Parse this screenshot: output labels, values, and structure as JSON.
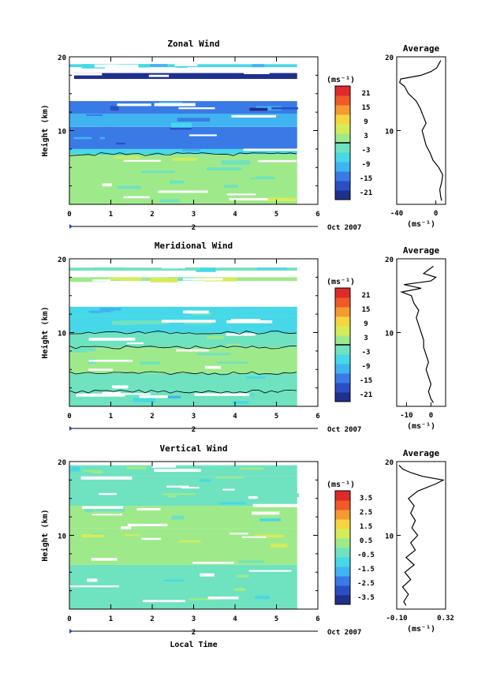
{
  "chart_data": [
    {
      "type": "heatmap",
      "title": "Zonal Wind",
      "ylabel": "Height (km)",
      "xlabel": "",
      "xlim": [
        0,
        6
      ],
      "ylim": [
        0,
        20
      ],
      "xticks": [
        "0",
        "1",
        "2",
        "3",
        "4",
        "5",
        "6"
      ],
      "yticks": [
        "10",
        "20"
      ],
      "date_marker": "2",
      "date_label": "Oct 2007",
      "colorbar": {
        "unit": "(ms⁻¹)",
        "ticks": [
          "21",
          "15",
          "9",
          "3",
          "-3",
          "-9",
          "-15",
          "-21"
        ],
        "range": [
          -24,
          24
        ],
        "zero_line": 0
      },
      "field": {
        "x_end": 5.5,
        "bands": [
          {
            "y0": 0,
            "y1": 6.8,
            "value": 2
          },
          {
            "y0": 6.8,
            "y1": 7.5,
            "value": -8
          },
          {
            "y0": 7.5,
            "y1": 10.5,
            "value": -14
          },
          {
            "y0": 10.5,
            "y1": 12.3,
            "value": -9
          },
          {
            "y0": 12.3,
            "y1": 14,
            "value": -16
          },
          {
            "y0": 18.6,
            "y1": 19.0,
            "value": -5
          }
        ],
        "upper_band": {
          "y0": 17.0,
          "y1": 17.8,
          "value": -21
        }
      },
      "average": {
        "title": "Average",
        "xlabel": "(ms⁻¹)",
        "xlim": [
          -40,
          10
        ],
        "xticks": [
          "-40",
          "0"
        ],
        "yticks": [
          "10",
          "20"
        ],
        "profile": [
          [
            0.5,
            6
          ],
          [
            1,
            5
          ],
          [
            2,
            4
          ],
          [
            3,
            6
          ],
          [
            4,
            7
          ],
          [
            5,
            3
          ],
          [
            6,
            -3
          ],
          [
            7,
            -6
          ],
          [
            8,
            -10
          ],
          [
            9,
            -12
          ],
          [
            10,
            -14
          ],
          [
            11,
            -10
          ],
          [
            12,
            -13
          ],
          [
            13,
            -16
          ],
          [
            14,
            -20
          ],
          [
            15,
            -28
          ],
          [
            16,
            -32
          ],
          [
            16.5,
            -37
          ],
          [
            17,
            -36
          ],
          [
            17.5,
            -15
          ],
          [
            18,
            -5
          ],
          [
            18.5,
            1
          ],
          [
            19,
            3
          ],
          [
            19.5,
            5
          ]
        ]
      }
    },
    {
      "type": "heatmap",
      "title": "Meridional Wind",
      "ylabel": "Height (km)",
      "xlabel": "",
      "xlim": [
        0,
        6
      ],
      "ylim": [
        0,
        20
      ],
      "xticks": [
        "0",
        "1",
        "2",
        "3",
        "4",
        "5",
        "6"
      ],
      "yticks": [
        "10",
        "20"
      ],
      "date_marker": "2",
      "date_label": "Oct 2007",
      "colorbar": {
        "unit": "(ms⁻¹)",
        "ticks": [
          "21",
          "15",
          "9",
          "3",
          "-3",
          "-9",
          "-15",
          "-21"
        ],
        "range": [
          -24,
          24
        ],
        "zero_line": 0
      },
      "field": {
        "x_end": 5.5,
        "bands": [
          {
            "y0": 0,
            "y1": 4.5,
            "value": -4
          },
          {
            "y0": 4.5,
            "y1": 8,
            "value": 0
          },
          {
            "y0": 8,
            "y1": 10,
            "value": -2
          },
          {
            "y0": 10,
            "y1": 12.2,
            "value": -5
          },
          {
            "y0": 12.2,
            "y1": 13.5,
            "value": -8
          },
          {
            "y0": 17.0,
            "y1": 17.5,
            "value": 2
          },
          {
            "y0": 18.4,
            "y1": 18.8,
            "value": -3
          }
        ]
      },
      "average": {
        "title": "Average",
        "xlabel": "(ms⁻¹)",
        "xlim": [
          -14,
          6
        ],
        "xticks": [
          "-10",
          "0"
        ],
        "yticks": [
          "10",
          "20"
        ],
        "profile": [
          [
            0.5,
            1
          ],
          [
            1,
            0
          ],
          [
            2,
            -1
          ],
          [
            3,
            0
          ],
          [
            4,
            -1
          ],
          [
            5,
            -2
          ],
          [
            6,
            -1
          ],
          [
            7,
            -2
          ],
          [
            8,
            -3
          ],
          [
            9,
            -3
          ],
          [
            10,
            -4
          ],
          [
            11,
            -5
          ],
          [
            12,
            -6
          ],
          [
            13,
            -5
          ],
          [
            14,
            -7
          ],
          [
            15,
            -8
          ],
          [
            15.5,
            -12
          ],
          [
            16,
            -4
          ],
          [
            16.5,
            -11
          ],
          [
            17,
            0
          ],
          [
            17.5,
            2
          ],
          [
            18,
            -3
          ],
          [
            18.5,
            -1
          ],
          [
            19,
            1
          ]
        ]
      }
    },
    {
      "type": "heatmap",
      "title": "Vertical Wind",
      "ylabel": "Height (km)",
      "xlabel": "Local Time",
      "xlim": [
        0,
        6
      ],
      "ylim": [
        0,
        20
      ],
      "xticks": [
        "0",
        "1",
        "2",
        "3",
        "4",
        "5",
        "6"
      ],
      "yticks": [
        "10",
        "20"
      ],
      "date_marker": "2",
      "date_label": "Oct 2007",
      "colorbar": {
        "unit": "(ms⁻¹)",
        "ticks": [
          "3.5",
          "2.5",
          "1.5",
          "0.5",
          "-0.5",
          "-1.5",
          "-2.5",
          "-3.5"
        ],
        "range": [
          -4,
          4
        ],
        "zero_line": null
      },
      "field": {
        "x_end": 5.5,
        "bands": [
          {
            "y0": 0,
            "y1": 6,
            "value": -0.5
          },
          {
            "y0": 6,
            "y1": 11,
            "value": 0.3
          },
          {
            "y0": 11,
            "y1": 14,
            "value": 0
          },
          {
            "y0": 14,
            "y1": 18,
            "value": -0.4
          },
          {
            "y0": 18,
            "y1": 19.5,
            "value": -0.2
          }
        ]
      },
      "average": {
        "title": "Average",
        "xlabel": "(ms⁻¹)",
        "xlim": [
          -0.1,
          0.32
        ],
        "xticks": [
          "-0.10",
          "0.32"
        ],
        "yticks": [
          "10",
          "20"
        ],
        "profile": [
          [
            0.5,
            -0.02
          ],
          [
            1,
            -0.04
          ],
          [
            2,
            0.0
          ],
          [
            3,
            -0.05
          ],
          [
            4,
            0.02
          ],
          [
            5,
            -0.03
          ],
          [
            6,
            0.05
          ],
          [
            7,
            -0.02
          ],
          [
            8,
            0.06
          ],
          [
            9,
            0.02
          ],
          [
            10,
            0.08
          ],
          [
            11,
            0.03
          ],
          [
            12,
            0.06
          ],
          [
            13,
            0.02
          ],
          [
            14,
            0.05
          ],
          [
            15,
            0.0
          ],
          [
            16,
            0.08
          ],
          [
            17,
            0.24
          ],
          [
            17.5,
            0.3
          ],
          [
            18,
            0.12
          ],
          [
            18.5,
            0.02
          ],
          [
            19,
            -0.05
          ],
          [
            19.5,
            -0.08
          ]
        ]
      }
    }
  ],
  "palette": [
    "#1f2f8c",
    "#2a4fc4",
    "#3a7ae6",
    "#40b4f0",
    "#46d8e8",
    "#6fe2c0",
    "#9eea8a",
    "#d4ec5a",
    "#f5d640",
    "#f59a30",
    "#ef5a28",
    "#e02a2a"
  ],
  "stripe_color": "#ffffff",
  "contour_color": "#000000"
}
